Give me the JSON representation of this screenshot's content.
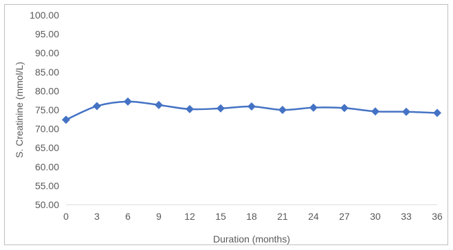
{
  "chart_data": {
    "type": "line",
    "xlabel": "Duration (months)",
    "ylabel": "S. Creatinine (mmol/L)",
    "x": [
      0,
      3,
      6,
      9,
      12,
      15,
      18,
      21,
      24,
      27,
      30,
      33,
      36
    ],
    "x_tick_labels": [
      "0",
      "3",
      "6",
      "9",
      "12",
      "15",
      "18",
      "21",
      "24",
      "27",
      "30",
      "33",
      "36"
    ],
    "y_tick_labels": [
      "50.00",
      "55.00",
      "60.00",
      "65.00",
      "70.00",
      "75.00",
      "80.00",
      "85.00",
      "90.00",
      "95.00",
      "100.00"
    ],
    "ylim": [
      50,
      100
    ],
    "series": [
      {
        "values": [
          72.4,
          76.0,
          77.2,
          76.3,
          75.2,
          75.4,
          75.9,
          75.0,
          75.6,
          75.5,
          74.6,
          74.5,
          74.2
        ]
      }
    ],
    "grid": false,
    "legend": "none",
    "colors": {
      "line": "#4472c4",
      "marker": "#4472c4",
      "axis": "#d9d9d9",
      "text": "#595959"
    }
  }
}
